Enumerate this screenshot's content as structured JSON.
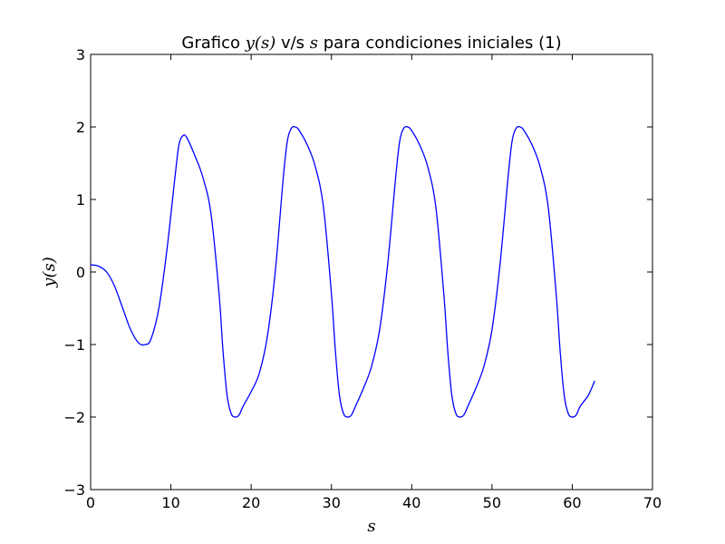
{
  "chart_data": {
    "type": "line",
    "title_parts": {
      "prefix": "Grafico ",
      "math_y": "y(s)",
      "middle": " v/s ",
      "math_s": "s",
      "suffix": " para condiciones iniciales (1)"
    },
    "xlabel": "s",
    "ylabel": "y(s)",
    "xlim": [
      0,
      70
    ],
    "ylim": [
      -3,
      3
    ],
    "xticks": [
      0,
      10,
      20,
      30,
      40,
      50,
      60,
      70
    ],
    "yticks": [
      -3,
      -2,
      -1,
      0,
      1,
      2,
      3
    ],
    "xtick_labels": [
      "0",
      "10",
      "20",
      "30",
      "40",
      "50",
      "60",
      "70"
    ],
    "ytick_labels": [
      "−3",
      "−2",
      "−1",
      "0",
      "1",
      "2",
      "3"
    ],
    "grid": false,
    "line_color": "#0000ff",
    "series": [
      {
        "x": [
          0,
          1,
          2,
          3,
          4,
          5,
          6,
          6.8,
          7.5,
          8.5,
          9.5,
          10.5,
          11,
          11.5,
          12,
          13,
          14,
          15,
          16,
          16.5,
          17,
          17.5,
          18,
          18.5,
          19,
          20,
          21,
          22,
          23,
          24,
          24.5,
          25,
          25.5,
          26,
          27,
          28,
          29,
          30,
          30.5,
          31,
          31.5,
          32,
          32.5,
          33,
          34,
          35,
          36,
          37,
          38,
          38.5,
          39,
          39.5,
          40,
          41,
          42,
          43,
          44,
          44.5,
          45,
          45.5,
          46,
          46.5,
          47,
          48,
          49,
          50,
          51,
          52,
          52.5,
          53,
          53.5,
          54,
          55,
          56,
          57,
          58,
          58.5,
          59,
          59.5,
          60,
          60.5,
          61,
          62,
          62.8
        ],
        "y": [
          0.1,
          0.08,
          0.0,
          -0.2,
          -0.5,
          -0.8,
          -0.98,
          -1.0,
          -0.93,
          -0.5,
          0.3,
          1.3,
          1.75,
          1.88,
          1.85,
          1.6,
          1.3,
          0.8,
          -0.3,
          -1.1,
          -1.7,
          -1.95,
          -2.0,
          -1.97,
          -1.85,
          -1.65,
          -1.4,
          -0.9,
          0.0,
          1.3,
          1.8,
          1.98,
          2.0,
          1.95,
          1.75,
          1.45,
          0.9,
          -0.3,
          -1.1,
          -1.7,
          -1.95,
          -2.0,
          -1.97,
          -1.85,
          -1.6,
          -1.3,
          -0.8,
          0.1,
          1.3,
          1.8,
          1.98,
          2.0,
          1.95,
          1.75,
          1.45,
          0.9,
          -0.3,
          -1.1,
          -1.7,
          -1.95,
          -2.0,
          -1.97,
          -1.85,
          -1.6,
          -1.3,
          -0.8,
          0.1,
          1.3,
          1.8,
          1.98,
          2.0,
          1.95,
          1.75,
          1.45,
          0.9,
          -0.3,
          -1.1,
          -1.7,
          -1.95,
          -2.0,
          -1.97,
          -1.85,
          -1.7,
          -1.5
        ]
      }
    ]
  }
}
